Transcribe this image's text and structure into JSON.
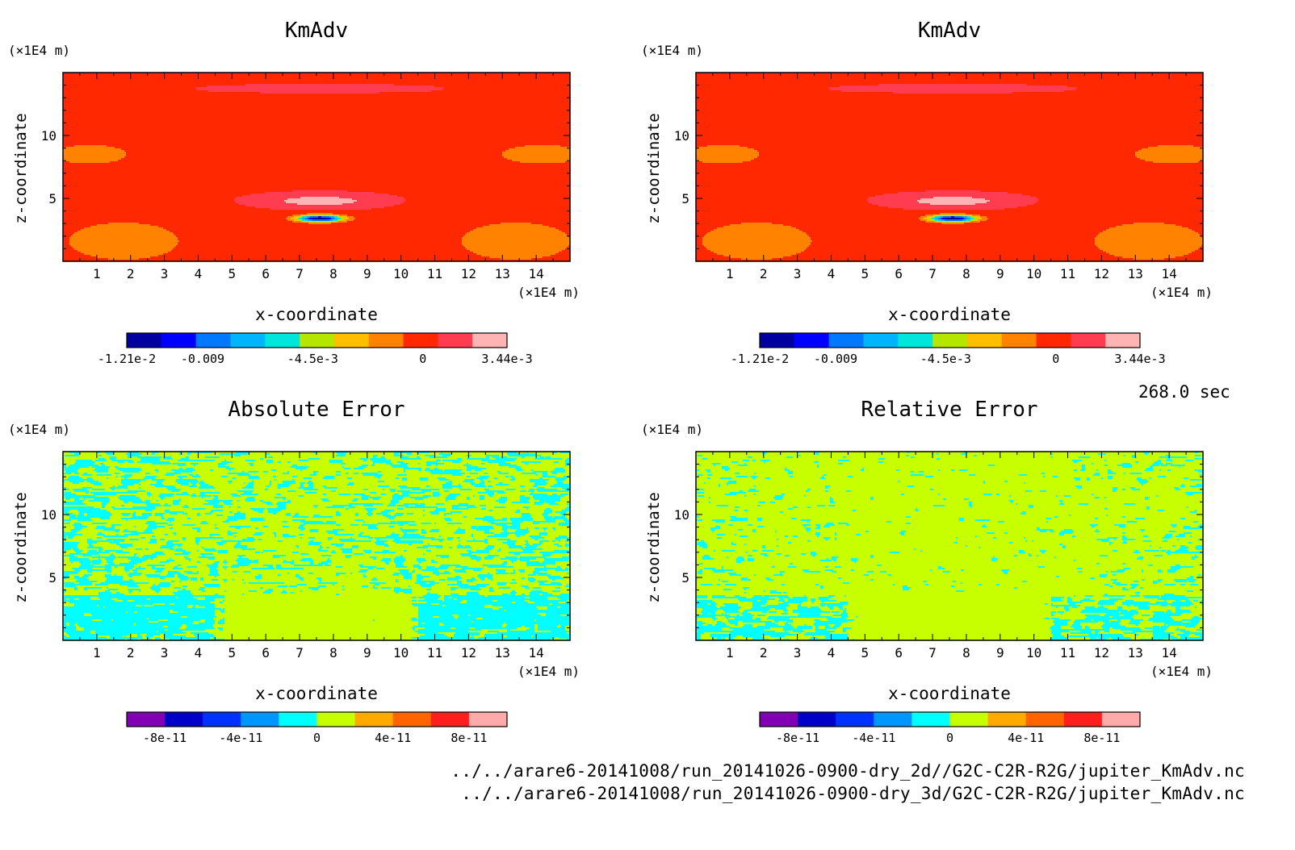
{
  "time_label": "268.0 sec",
  "footer": {
    "file1": "../../arare6-20141008/run_20141026-0900-dry_2d//G2C-C2R-R2G/jupiter_KmAdv.nc",
    "file2": "../../arare6-20141008/run_20141026-0900-dry_3d/G2C-C2R-R2G/jupiter_KmAdv.nc"
  },
  "colorbars": {
    "kmadv": {
      "colors": [
        "#0000a0",
        "#0000ff",
        "#0078ff",
        "#00b4ff",
        "#00e6dc",
        "#b4e600",
        "#ffbe00",
        "#ff8200",
        "#ff2800",
        "#ff3c50",
        "#ffb4b4"
      ],
      "tick_labels": [
        "-1.21e-2",
        "-0.009",
        "-4.5e-3",
        "0",
        "3.44e-3"
      ],
      "tick_values": [
        -0.0121,
        -0.009,
        -0.0045,
        0,
        0.00344
      ],
      "range": [
        -0.0121,
        0.00344
      ]
    },
    "error": {
      "colors": [
        "#8200b4",
        "#0000c8",
        "#0032ff",
        "#0096ff",
        "#00ffff",
        "#c8ff00",
        "#ffaa00",
        "#ff6400",
        "#ff1e1e",
        "#ffaaaa"
      ],
      "tick_labels": [
        "-8e-11",
        "-4e-11",
        "0",
        "4e-11",
        "8e-11"
      ],
      "tick_values": [
        -8e-11,
        -4e-11,
        0,
        4e-11,
        8e-11
      ],
      "range": [
        -1e-10,
        1e-10
      ]
    }
  },
  "chart_data": [
    {
      "type": "heatmap",
      "title": "KmAdv",
      "xlabel": "x-coordinate",
      "ylabel": "z-coordinate",
      "x_unit": "(×1E4 m)",
      "y_unit": "(×1E4 m)",
      "xlim": [
        0,
        15
      ],
      "ylim": [
        0,
        15
      ],
      "xticks": [
        1,
        2,
        3,
        4,
        5,
        6,
        7,
        8,
        9,
        10,
        11,
        12,
        13,
        14
      ],
      "yticks": [
        5,
        10
      ],
      "colorbar": "kmadv",
      "field": "kmadv",
      "anomaly": {
        "x": 7.6,
        "z": 3.4,
        "min": -0.0121,
        "max": 0.00344
      }
    },
    {
      "type": "heatmap",
      "title": "KmAdv",
      "xlabel": "x-coordinate",
      "ylabel": "z-coordinate",
      "x_unit": "(×1E4 m)",
      "y_unit": "(×1E4 m)",
      "xlim": [
        0,
        15
      ],
      "ylim": [
        0,
        15
      ],
      "xticks": [
        1,
        2,
        3,
        4,
        5,
        6,
        7,
        8,
        9,
        10,
        11,
        12,
        13,
        14
      ],
      "yticks": [
        5,
        10
      ],
      "colorbar": "kmadv",
      "field": "kmadv",
      "anomaly": {
        "x": 7.6,
        "z": 3.4,
        "min": -0.0121,
        "max": 0.00344
      }
    },
    {
      "type": "heatmap",
      "title": "Absolute Error",
      "xlabel": "x-coordinate",
      "ylabel": "z-coordinate",
      "x_unit": "(×1E4 m)",
      "y_unit": "(×1E4 m)",
      "xlim": [
        0,
        15
      ],
      "ylim": [
        0,
        15
      ],
      "xticks": [
        1,
        2,
        3,
        4,
        5,
        6,
        7,
        8,
        9,
        10,
        11,
        12,
        13,
        14
      ],
      "yticks": [
        5,
        10
      ],
      "colorbar": "error",
      "field": "noise",
      "noise_seed": 7,
      "cyan_fraction": 0.45
    },
    {
      "type": "heatmap",
      "title": "Relative Error",
      "xlabel": "x-coordinate",
      "ylabel": "z-coordinate",
      "x_unit": "(×1E4 m)",
      "y_unit": "(×1E4 m)",
      "xlim": [
        0,
        15
      ],
      "ylim": [
        0,
        15
      ],
      "xticks": [
        1,
        2,
        3,
        4,
        5,
        6,
        7,
        8,
        9,
        10,
        11,
        12,
        13,
        14
      ],
      "yticks": [
        5,
        10
      ],
      "colorbar": "error",
      "field": "noise",
      "noise_seed": 13,
      "cyan_fraction": 0.3
    }
  ]
}
